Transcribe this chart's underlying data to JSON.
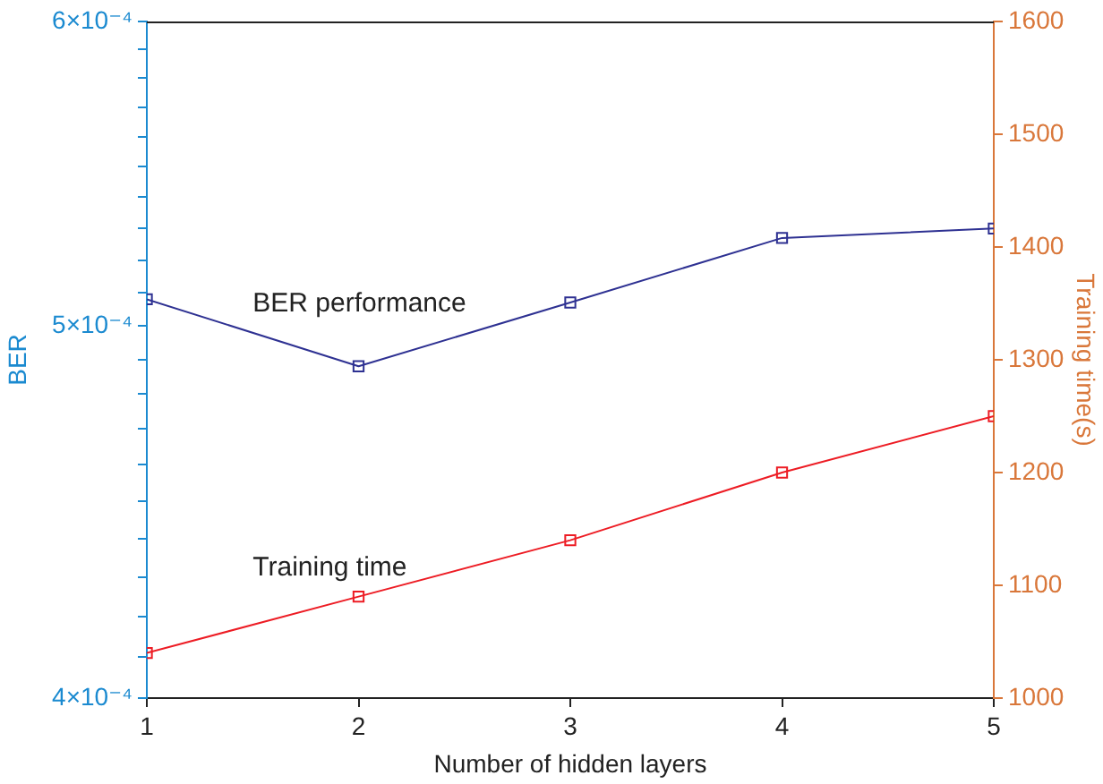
{
  "chart_data": {
    "type": "line",
    "xlabel": "Number of hidden layers",
    "ylabel": "BER",
    "y2label": "Training time(s)",
    "x": [
      1,
      2,
      3,
      4,
      5
    ],
    "xlim": [
      1,
      5
    ],
    "xticks": [
      1,
      2,
      3,
      4,
      5
    ],
    "log": "y",
    "ylim": [
      0.0004,
      0.0006
    ],
    "yticks": [
      {
        "value": 0.0004,
        "label": "4×10⁻⁴"
      },
      {
        "value": 0.00041,
        "label": null
      },
      {
        "value": 0.00042,
        "label": null
      },
      {
        "value": 0.00043,
        "label": null
      },
      {
        "value": 0.00044,
        "label": null
      },
      {
        "value": 0.00045,
        "label": null
      },
      {
        "value": 0.00046,
        "label": null
      },
      {
        "value": 0.00047,
        "label": null
      },
      {
        "value": 0.00048,
        "label": null
      },
      {
        "value": 0.00049,
        "label": null
      },
      {
        "value": 0.0005,
        "label": "5×10⁻⁴"
      },
      {
        "value": 0.00051,
        "label": null
      },
      {
        "value": 0.00052,
        "label": null
      },
      {
        "value": 0.00053,
        "label": null
      },
      {
        "value": 0.00054,
        "label": null
      },
      {
        "value": 0.00055,
        "label": null
      },
      {
        "value": 0.00056,
        "label": null
      },
      {
        "value": 0.00057,
        "label": null
      },
      {
        "value": 0.00058,
        "label": null
      },
      {
        "value": 0.00059,
        "label": null
      },
      {
        "value": 0.0006,
        "label": "6×10⁻⁴"
      }
    ],
    "y2lim": [
      1000,
      1600
    ],
    "y2ticks": [
      1000,
      1100,
      1200,
      1300,
      1400,
      1500,
      1600
    ],
    "series": [
      {
        "name": "BER performance",
        "color": "#2e3192",
        "values": [
          0.000508,
          0.000488,
          0.000507,
          0.000527,
          0.00053
        ]
      },
      {
        "name": "Training time",
        "color": "#ed1c24",
        "axis": "y2",
        "values": [
          1040,
          1090,
          1140,
          1200,
          1250
        ]
      }
    ],
    "marker": "square",
    "line_style": "solid",
    "grid": false,
    "legend": false
  }
}
